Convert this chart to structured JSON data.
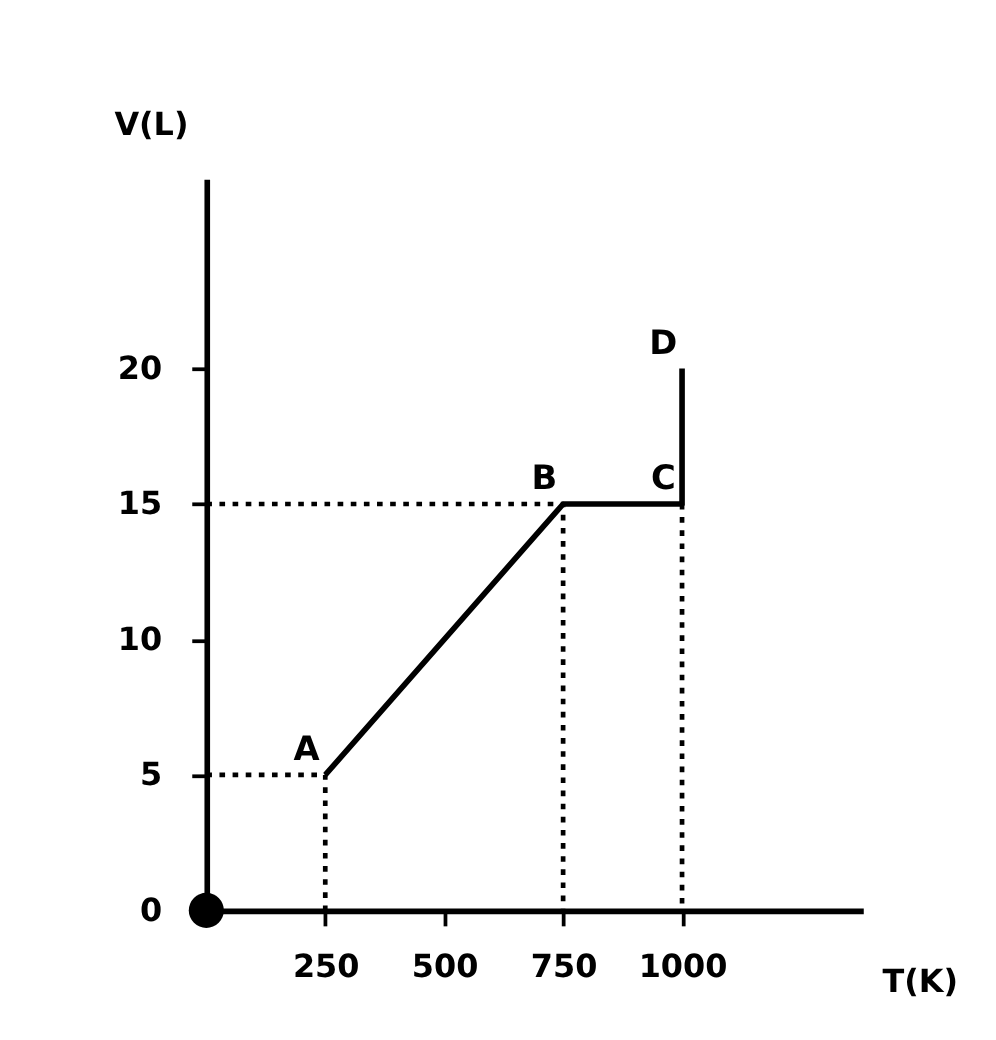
{
  "chart_data": {
    "type": "line",
    "xlabel": "T(K)",
    "ylabel": "V(L)",
    "xlim": [
      0,
      1380
    ],
    "ylim": [
      0,
      27
    ],
    "xticks": [
      250,
      500,
      750,
      {
        "value": 1000,
        "label": "1000"
      }
    ],
    "yticks": [
      0,
      5,
      10,
      15,
      20
    ],
    "series": [
      {
        "color": "#000000",
        "line_style": "solid",
        "x": [
          250,
          750,
          1000,
          1000
        ],
        "values": [
          5,
          15,
          15,
          20
        ]
      },
      {
        "color": "#000000",
        "line_style": "dotted",
        "x": [
          0,
          250,
          250
        ],
        "values": [
          5,
          5,
          0
        ]
      },
      {
        "color": "#000000",
        "line_style": "dotted",
        "x": [
          0,
          750,
          750
        ],
        "values": [
          15,
          15,
          0
        ]
      },
      {
        "color": "#000000",
        "line_style": "dotted",
        "x": [
          1000,
          1000
        ],
        "values": [
          15,
          0
        ]
      },
      {
        "type": "scatter",
        "color": "#000000",
        "marker": "circle",
        "x": [
          0
        ],
        "values": [
          0
        ]
      }
    ],
    "annotations": [
      {
        "text": "A",
        "x": 250,
        "y": 5
      },
      {
        "text": "B",
        "x": 750,
        "y": 15
      },
      {
        "text": "C",
        "x": 1000,
        "y": 15
      },
      {
        "text": "D",
        "x": 1000,
        "y": 20
      }
    ]
  }
}
